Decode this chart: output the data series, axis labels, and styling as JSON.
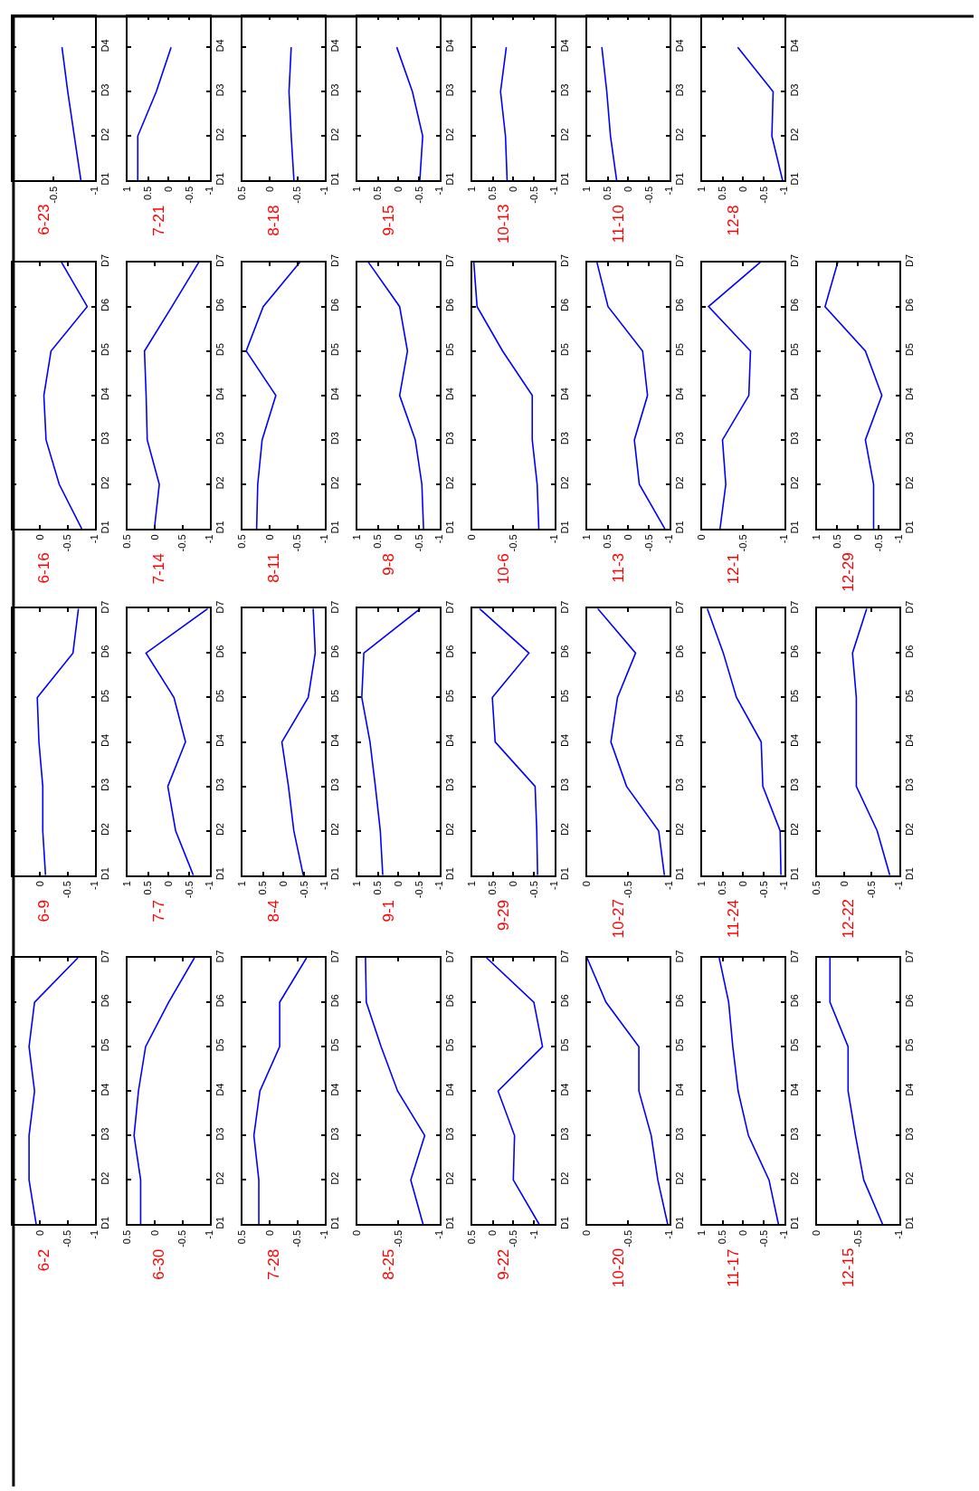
{
  "chart_data": [
    {
      "type": "line",
      "title": "6-23",
      "categories": [
        "D4",
        "D3",
        "D2",
        "D1"
      ],
      "values": [
        -0.6,
        -0.67,
        -0.75,
        -0.83
      ],
      "color": "#0000ff",
      "orientation": "horizontal",
      "xlim": [
        0,
        -1
      ],
      "xticks": [
        -0.5,
        -1
      ]
    },
    {
      "type": "line",
      "title": "7-21",
      "categories": [
        "D4",
        "D3",
        "D2",
        "D1"
      ],
      "values": [
        -0.06,
        0.3,
        0.75,
        0.75
      ],
      "color": "#0000ff",
      "orientation": "horizontal",
      "xlim": [
        1,
        -1
      ],
      "xticks": [
        1,
        0.5,
        0,
        -0.5,
        -1
      ]
    },
    {
      "type": "line",
      "title": "8-18",
      "categories": [
        "D4",
        "D3",
        "D2",
        "D1"
      ],
      "values": [
        -0.39,
        -0.35,
        -0.39,
        -0.44
      ],
      "color": "#0000ff",
      "orientation": "horizontal",
      "xlim": [
        0.5,
        -1
      ],
      "xticks": [
        0.5,
        0,
        -0.5,
        -1
      ]
    },
    {
      "type": "line",
      "title": "9-15",
      "categories": [
        "D4",
        "D3",
        "D2",
        "D1"
      ],
      "values": [
        0.04,
        -0.34,
        -0.59,
        -0.52
      ],
      "color": "#0000ff",
      "orientation": "horizontal",
      "xlim": [
        1,
        -1
      ],
      "xticks": [
        1,
        0.5,
        0,
        -0.5,
        -1
      ]
    },
    {
      "type": "line",
      "title": "10-13",
      "categories": [
        "D4",
        "D3",
        "D2",
        "D1"
      ],
      "values": [
        0.17,
        0.31,
        0.19,
        0.15
      ],
      "color": "#0000ff",
      "orientation": "horizontal",
      "xlim": [
        1,
        -1
      ],
      "xticks": [
        1,
        0.5,
        0,
        -0.5,
        -1
      ]
    },
    {
      "type": "line",
      "title": "11-10",
      "categories": [
        "D4",
        "D3",
        "D2",
        "D1"
      ],
      "values": [
        0.64,
        0.52,
        0.43,
        0.28
      ],
      "color": "#0000ff",
      "orientation": "horizontal",
      "xlim": [
        1,
        -1
      ],
      "xticks": [
        1,
        0.5,
        0,
        -0.5,
        -1
      ]
    },
    {
      "type": "line",
      "title": "12-8",
      "categories": [
        "D4",
        "D3",
        "D2",
        "D1"
      ],
      "values": [
        0.13,
        -0.73,
        -0.7,
        -0.96
      ],
      "color": "#0000ff",
      "orientation": "horizontal",
      "xlim": [
        1,
        -1
      ],
      "xticks": [
        1,
        0.5,
        0,
        -0.5,
        -1
      ]
    },
    {
      "type": "line",
      "title": "6-16",
      "categories": [
        "D7",
        "D6",
        "D5",
        "D4",
        "D3",
        "D2",
        "D1"
      ],
      "values": [
        -0.39,
        -0.86,
        -0.2,
        -0.07,
        -0.11,
        -0.35,
        -0.76
      ],
      "color": "#0000ff",
      "orientation": "horizontal",
      "xlim": [
        0.5,
        -1
      ],
      "xticks": [
        0,
        -0.5,
        -1
      ]
    },
    {
      "type": "line",
      "title": "7-14",
      "categories": [
        "D7",
        "D6",
        "D5",
        "D4",
        "D3",
        "D2",
        "D1"
      ],
      "values": [
        -0.8,
        -0.31,
        0.19,
        0.16,
        0.14,
        -0.08,
        0.01
      ],
      "color": "#0000ff",
      "orientation": "horizontal",
      "xlim": [
        0.5,
        -1
      ],
      "xticks": [
        0.5,
        0,
        -0.5,
        -1
      ]
    },
    {
      "type": "line",
      "title": "8-11",
      "categories": [
        "D7",
        "D6",
        "D5",
        "D4",
        "D3",
        "D2",
        "D1"
      ],
      "values": [
        -0.55,
        0.12,
        0.43,
        -0.11,
        0.14,
        0.22,
        0.24
      ],
      "color": "#0000ff",
      "orientation": "horizontal",
      "xlim": [
        0.5,
        -1
      ],
      "xticks": [
        0.5,
        0,
        -0.5,
        -1
      ]
    },
    {
      "type": "line",
      "title": "9-8",
      "categories": [
        "D7",
        "D6",
        "D5",
        "D4",
        "D3",
        "D2",
        "D1"
      ],
      "values": [
        0.73,
        -0.03,
        -0.22,
        -0.03,
        -0.41,
        -0.57,
        -0.61
      ],
      "color": "#0000ff",
      "orientation": "horizontal",
      "xlim": [
        1,
        -1
      ],
      "xticks": [
        1,
        0.5,
        0,
        -0.5,
        -1
      ]
    },
    {
      "type": "line",
      "title": "10-6",
      "categories": [
        "D7",
        "D6",
        "D5",
        "D4",
        "D3",
        "D2",
        "D1"
      ],
      "values": [
        -0.02,
        -0.06,
        -0.37,
        -0.73,
        -0.73,
        -0.79,
        -0.81
      ],
      "color": "#0000ff",
      "orientation": "horizontal",
      "xlim": [
        0,
        -1
      ],
      "xticks": [
        0,
        -0.5,
        -1
      ]
    },
    {
      "type": "line",
      "title": "11-3",
      "categories": [
        "D7",
        "D6",
        "D5",
        "D4",
        "D3",
        "D2",
        "D1"
      ],
      "values": [
        0.76,
        0.49,
        -0.35,
        -0.47,
        -0.15,
        -0.27,
        -0.89
      ],
      "color": "#0000ff",
      "orientation": "horizontal",
      "xlim": [
        1,
        -1
      ],
      "xticks": [
        1,
        0.5,
        0,
        -0.5,
        -1
      ]
    },
    {
      "type": "line",
      "title": "12-1",
      "categories": [
        "D7",
        "D6",
        "D5",
        "D4",
        "D3",
        "D2",
        "D1"
      ],
      "values": [
        -0.71,
        -0.08,
        -0.59,
        -0.57,
        -0.25,
        -0.29,
        -0.22
      ],
      "color": "#0000ff",
      "orientation": "horizontal",
      "xlim": [
        0,
        -1
      ],
      "xticks": [
        0,
        -0.5,
        -1
      ]
    },
    {
      "type": "line",
      "title": "12-29",
      "categories": [
        "D7",
        "D6",
        "D5",
        "D4",
        "D3",
        "D2",
        "D1"
      ],
      "values": [
        0.49,
        0.8,
        -0.18,
        -0.58,
        -0.18,
        -0.38,
        -0.38
      ],
      "color": "#0000ff",
      "orientation": "horizontal",
      "xlim": [
        1,
        -1
      ],
      "xticks": [
        1,
        0.5,
        0,
        -0.5,
        -1
      ]
    },
    {
      "type": "line",
      "title": "6-9",
      "categories": [
        "D7",
        "D6",
        "D5",
        "D4",
        "D3",
        "D2",
        "D1"
      ],
      "values": [
        -0.7,
        -0.6,
        0.05,
        0.02,
        -0.05,
        -0.05,
        -0.1
      ],
      "color": "#0000ff",
      "orientation": "horizontal",
      "xlim": [
        0.5,
        -1
      ],
      "xticks": [
        0,
        -0.5,
        -1
      ]
    },
    {
      "type": "line",
      "title": "7-7",
      "categories": [
        "D7",
        "D6",
        "D5",
        "D4",
        "D3",
        "D2",
        "D1"
      ],
      "values": [
        -0.95,
        0.55,
        -0.13,
        -0.41,
        0.02,
        -0.17,
        -0.6
      ],
      "color": "#0000ff",
      "orientation": "horizontal",
      "xlim": [
        1,
        -1
      ],
      "xticks": [
        1,
        0.5,
        0,
        -0.5,
        -1
      ]
    },
    {
      "type": "line",
      "title": "8-4",
      "categories": [
        "D7",
        "D6",
        "D5",
        "D4",
        "D3",
        "D2",
        "D1"
      ],
      "values": [
        -0.72,
        -0.77,
        -0.6,
        0.04,
        -0.12,
        -0.25,
        -0.48
      ],
      "color": "#0000ff",
      "orientation": "horizontal",
      "xlim": [
        1,
        -1
      ],
      "xticks": [
        1,
        0.5,
        0,
        -0.5,
        -1
      ]
    },
    {
      "type": "line",
      "title": "9-1",
      "categories": [
        "D7",
        "D6",
        "D5",
        "D4",
        "D3",
        "D2",
        "D1"
      ],
      "values": [
        -0.53,
        0.84,
        0.89,
        0.69,
        0.56,
        0.44,
        0.38
      ],
      "color": "#0000ff",
      "orientation": "horizontal",
      "xlim": [
        1,
        -1
      ],
      "xticks": [
        1,
        0.5,
        0,
        -0.5,
        -1
      ]
    },
    {
      "type": "line",
      "title": "9-29",
      "categories": [
        "D7",
        "D6",
        "D5",
        "D4",
        "D3",
        "D2",
        "D1"
      ],
      "values": [
        0.82,
        -0.38,
        0.51,
        0.44,
        -0.53,
        -0.57,
        -0.59
      ],
      "color": "#0000ff",
      "orientation": "horizontal",
      "xlim": [
        1,
        -1
      ],
      "xticks": [
        1,
        0.5,
        0,
        -0.5,
        -1
      ]
    },
    {
      "type": "line",
      "title": "10-27",
      "categories": [
        "D7",
        "D6",
        "D5",
        "D4",
        "D3",
        "D2",
        "D1"
      ],
      "values": [
        -0.13,
        -0.59,
        -0.37,
        -0.29,
        -0.48,
        -0.87,
        -0.94
      ],
      "color": "#0000ff",
      "orientation": "horizontal",
      "xlim": [
        0,
        -1
      ],
      "xticks": [
        0,
        -0.5,
        -1
      ]
    },
    {
      "type": "line",
      "title": "11-24",
      "categories": [
        "D7",
        "D6",
        "D5",
        "D4",
        "D3",
        "D2",
        "D1"
      ],
      "values": [
        0.87,
        0.48,
        0.16,
        -0.44,
        -0.48,
        -0.9,
        -0.92
      ],
      "color": "#0000ff",
      "orientation": "horizontal",
      "xlim": [
        1,
        -1
      ],
      "xticks": [
        1,
        0.5,
        0,
        -0.5,
        -1
      ]
    },
    {
      "type": "line",
      "title": "12-22",
      "categories": [
        "D7",
        "D6",
        "D5",
        "D4",
        "D3",
        "D2",
        "D1"
      ],
      "values": [
        -0.41,
        -0.15,
        -0.22,
        -0.22,
        -0.22,
        -0.6,
        -0.83
      ],
      "color": "#0000ff",
      "orientation": "horizontal",
      "xlim": [
        0.5,
        -1
      ],
      "xticks": [
        0.5,
        0,
        -0.5,
        -1
      ]
    },
    {
      "type": "line",
      "title": "6-2",
      "categories": [
        "D7",
        "D6",
        "D5",
        "D4",
        "D3",
        "D2",
        "D1"
      ],
      "values": [
        -0.69,
        0.1,
        0.2,
        0.1,
        0.2,
        0.2,
        0.07
      ],
      "color": "#0000ff",
      "orientation": "horizontal",
      "xlim": [
        0.5,
        -1
      ],
      "xticks": [
        0,
        -0.5,
        -1
      ]
    },
    {
      "type": "line",
      "title": "6-30",
      "categories": [
        "D7",
        "D6",
        "D5",
        "D4",
        "D3",
        "D2",
        "D1"
      ],
      "values": [
        -0.72,
        -0.25,
        0.17,
        0.3,
        0.38,
        0.26,
        0.26
      ],
      "color": "#0000ff",
      "orientation": "horizontal",
      "xlim": [
        0.5,
        -1
      ],
      "xticks": [
        0.5,
        0,
        -0.5,
        -1
      ]
    },
    {
      "type": "line",
      "title": "7-28",
      "categories": [
        "D7",
        "D6",
        "D5",
        "D4",
        "D3",
        "D2",
        "D1"
      ],
      "values": [
        -0.67,
        -0.18,
        -0.18,
        0.18,
        0.29,
        0.2,
        0.2
      ],
      "color": "#0000ff",
      "orientation": "horizontal",
      "xlim": [
        0.5,
        -1
      ],
      "xticks": [
        0.5,
        0,
        -0.5,
        -1
      ]
    },
    {
      "type": "line",
      "title": "8-25",
      "categories": [
        "D7",
        "D6",
        "D5",
        "D4",
        "D3",
        "D2",
        "D1"
      ],
      "values": [
        -0.1,
        -0.11,
        -0.29,
        -0.49,
        -0.82,
        -0.65,
        -0.8
      ],
      "color": "#0000ff",
      "orientation": "horizontal",
      "xlim": [
        0,
        -1
      ],
      "xticks": [
        0,
        -0.5,
        -1
      ]
    },
    {
      "type": "line",
      "title": "9-22",
      "categories": [
        "D7",
        "D6",
        "D5",
        "D4",
        "D3",
        "D2",
        "D1"
      ],
      "values": [
        0.15,
        -1.0,
        -1.21,
        -0.13,
        -0.53,
        -0.5,
        -1.13
      ],
      "color": "#0000ff",
      "orientation": "horizontal",
      "xlim": [
        0.5,
        -1.5
      ],
      "xticks": [
        0.5,
        0,
        -0.5,
        -1
      ]
    },
    {
      "type": "line",
      "title": "10-20",
      "categories": [
        "D7",
        "D6",
        "D5",
        "D4",
        "D3",
        "D2",
        "D1"
      ],
      "values": [
        0,
        -0.23,
        -0.63,
        -0.63,
        -0.78,
        -0.86,
        -0.98
      ],
      "color": "#0000ff",
      "orientation": "horizontal",
      "xlim": [
        0,
        -1
      ],
      "xticks": [
        0,
        -0.5,
        -1
      ]
    },
    {
      "type": "line",
      "title": "11-17",
      "categories": [
        "D7",
        "D6",
        "D5",
        "D4",
        "D3",
        "D2",
        "D1"
      ],
      "values": [
        0.58,
        0.35,
        0.25,
        0.12,
        -0.13,
        -0.63,
        -0.86
      ],
      "color": "#0000ff",
      "orientation": "horizontal",
      "xlim": [
        1,
        -1
      ],
      "xticks": [
        1,
        0.5,
        0,
        -0.5,
        -1
      ]
    },
    {
      "type": "line",
      "title": "12-15",
      "categories": [
        "D7",
        "D6",
        "D5",
        "D4",
        "D3",
        "D2",
        "D1"
      ],
      "values": [
        -0.16,
        -0.16,
        -0.38,
        -0.38,
        -0.47,
        -0.57,
        -0.8
      ],
      "color": "#0000ff",
      "orientation": "horizontal",
      "xlim": [
        0,
        -1
      ],
      "xticks": [
        0,
        -0.5,
        -1
      ]
    }
  ]
}
